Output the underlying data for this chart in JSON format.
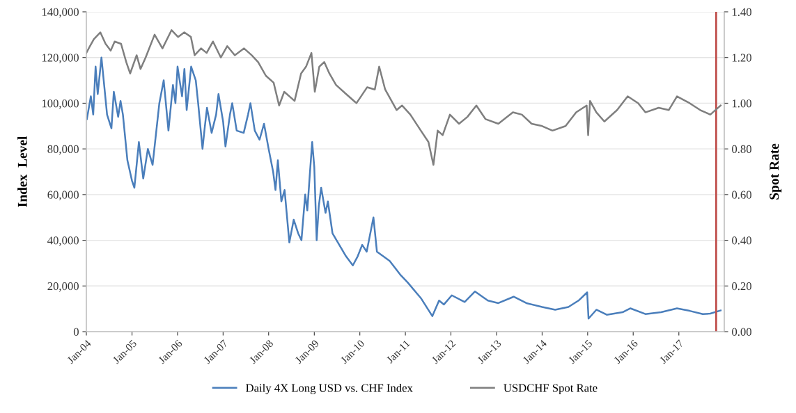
{
  "chart_data": {
    "type": "line",
    "ylabel": "Index  Level",
    "y2label": "Spot Rate",
    "xlim": [
      "2004-01-01",
      "2017-12-31"
    ],
    "xticks": [
      {
        "value": "2004-01-01",
        "label": "Jan-04"
      },
      {
        "value": "2005-01-01",
        "label": "Jan-05"
      },
      {
        "value": "2006-01-01",
        "label": "Jan-06"
      },
      {
        "value": "2007-01-01",
        "label": "Jan-07"
      },
      {
        "value": "2008-01-01",
        "label": "Jan-08"
      },
      {
        "value": "2009-01-01",
        "label": "Jan-09"
      },
      {
        "value": "2010-01-01",
        "label": "Jan-10"
      },
      {
        "value": "2011-01-01",
        "label": "Jan-11"
      },
      {
        "value": "2012-01-01",
        "label": "Jan-12"
      },
      {
        "value": "2013-01-01",
        "label": "Jan-13"
      },
      {
        "value": "2014-01-01",
        "label": "Jan-14"
      },
      {
        "value": "2015-01-01",
        "label": "Jan-15"
      },
      {
        "value": "2016-01-01",
        "label": "Jan-16"
      },
      {
        "value": "2017-01-01",
        "label": "Jan-17"
      }
    ],
    "ylim": [
      0,
      140000
    ],
    "yticks": [
      0,
      {
        "value": 20000,
        "label": "20,000"
      },
      {
        "value": 40000,
        "label": "40,000"
      },
      {
        "value": 60000,
        "label": "60,000"
      },
      {
        "value": 80000,
        "label": "80,000"
      },
      {
        "value": 100000,
        "label": "100,000"
      },
      {
        "value": 120000,
        "label": "120,000"
      },
      {
        "value": 140000,
        "label": "140,000"
      }
    ],
    "y2lim": [
      0,
      1.4
    ],
    "y2ticks": [
      {
        "value": 0,
        "label": "0.00"
      },
      {
        "value": 0.2,
        "label": "0.20"
      },
      {
        "value": 0.4,
        "label": "0.40"
      },
      {
        "value": 0.6,
        "label": "0.60"
      },
      {
        "value": 0.8,
        "label": "0.80"
      },
      {
        "value": 1.0,
        "label": "1.00"
      },
      {
        "value": 1.2,
        "label": "1.20"
      },
      {
        "value": 1.4,
        "label": "1.40"
      }
    ],
    "grid": "y",
    "legend": "bottom",
    "marker": "none",
    "line_style": "solid",
    "ref_lines": [
      {
        "axis": "x",
        "value": "2017-10-27",
        "label": null,
        "color": "#c0504d"
      }
    ],
    "series": [
      {
        "name": "Daily 4X Long USD vs. CHF Index",
        "color": "#4a7ebb",
        "x": [
          "2004-01-05",
          "2004-02-06",
          "2004-02-25",
          "2004-03-15",
          "2004-04-01",
          "2004-05-01",
          "2004-06-15",
          "2004-07-20",
          "2004-08-08",
          "2004-09-12",
          "2004-10-01",
          "2004-10-20",
          "2004-11-25",
          "2005-01-01",
          "2005-01-20",
          "2005-02-25",
          "2005-04-01",
          "2005-05-08",
          "2005-06-15",
          "2005-08-08",
          "2005-09-12",
          "2005-10-20",
          "2005-11-25",
          "2005-12-15",
          "2006-01-01",
          "2006-02-06",
          "2006-02-25",
          "2006-03-15",
          "2006-04-20",
          "2006-05-27",
          "2006-06-15",
          "2006-07-20",
          "2006-08-08",
          "2006-08-25",
          "2006-10-01",
          "2006-11-06",
          "2006-11-25",
          "2007-01-01",
          "2007-01-20",
          "2007-02-25",
          "2007-03-15",
          "2007-04-20",
          "2007-06-15",
          "2007-07-20",
          "2007-08-08",
          "2007-09-12",
          "2007-10-20",
          "2007-11-25",
          "2008-01-01",
          "2008-02-06",
          "2008-02-25",
          "2008-03-15",
          "2008-04-12",
          "2008-05-08",
          "2008-06-15",
          "2008-07-20",
          "2008-08-25",
          "2008-09-20",
          "2008-10-20",
          "2008-11-06",
          "2008-11-25",
          "2008-12-15",
          "2009-01-01",
          "2009-01-20",
          "2009-02-06",
          "2009-02-25",
          "2009-04-01",
          "2009-04-20",
          "2009-05-27",
          "2009-07-20",
          "2009-09-12",
          "2009-11-06",
          "2009-12-15",
          "2010-01-20",
          "2010-02-25",
          "2010-04-20",
          "2010-05-18",
          "2010-08-28",
          "2010-11-20",
          "2011-01-20",
          "2011-05-05",
          "2011-08-05",
          "2011-09-28",
          "2011-11-06",
          "2012-01-08",
          "2012-04-20",
          "2012-07-12",
          "2012-10-23",
          "2013-01-15",
          "2013-05-18",
          "2013-08-28",
          "2014-01-01",
          "2014-04-16",
          "2014-07-31",
          "2014-10-20",
          "2014-12-28",
          "2015-01-08",
          "2015-03-12",
          "2015-06-03",
          "2015-10-08",
          "2015-12-10",
          "2016-04-08",
          "2016-08-12",
          "2016-12-17",
          "2017-03-29",
          "2017-07-12",
          "2017-09-10",
          "2017-12-02"
        ],
        "values": [
          93000,
          103000,
          95000,
          116000,
          104000,
          120000,
          95000,
          89000,
          105000,
          94000,
          101000,
          95000,
          75000,
          66000,
          63000,
          83000,
          67000,
          80000,
          73000,
          100000,
          110000,
          88000,
          108000,
          100000,
          116000,
          103000,
          115000,
          97000,
          116000,
          110000,
          100000,
          80000,
          90000,
          98000,
          87000,
          95000,
          104000,
          92000,
          81000,
          95000,
          100000,
          88000,
          87000,
          95000,
          100000,
          88000,
          84000,
          91000,
          80000,
          70000,
          62000,
          75000,
          57000,
          62000,
          39000,
          49000,
          43000,
          40000,
          60000,
          53000,
          68000,
          83000,
          72000,
          40000,
          55000,
          63000,
          52000,
          57000,
          43000,
          38000,
          33000,
          29000,
          33000,
          38000,
          35000,
          50000,
          35000,
          31000,
          25000,
          21500,
          14700,
          6800,
          13600,
          11900,
          15900,
          13000,
          17600,
          13600,
          12500,
          15300,
          12500,
          10800,
          9600,
          10800,
          13600,
          17200,
          5700,
          9600,
          7400,
          8500,
          10200,
          7700,
          8500,
          10200,
          9100,
          7700,
          7900,
          9300
        ]
      },
      {
        "name": "USDCHF Spot Rate",
        "color": "#7f7f7f",
        "axis": "y2",
        "x": [
          "2004-01-01",
          "2004-01-30",
          "2004-03-01",
          "2004-04-22",
          "2004-06-03",
          "2004-07-14",
          "2004-08-15",
          "2004-10-05",
          "2004-11-16",
          "2004-12-17",
          "2005-02-07",
          "2005-03-10",
          "2005-04-20",
          "2005-07-01",
          "2005-09-02",
          "2005-11-14",
          "2006-01-05",
          "2006-02-24",
          "2006-04-18",
          "2006-05-18",
          "2006-07-08",
          "2006-08-22",
          "2006-10-12",
          "2006-12-14",
          "2007-02-03",
          "2007-04-05",
          "2007-06-18",
          "2007-08-18",
          "2007-10-09",
          "2007-12-10",
          "2008-02-10",
          "2008-03-25",
          "2008-05-05",
          "2008-07-27",
          "2008-09-17",
          "2008-10-27",
          "2008-12-09",
          "2009-01-05",
          "2009-02-10",
          "2009-03-22",
          "2009-05-02",
          "2009-06-24",
          "2009-09-13",
          "2009-12-05",
          "2010-03-01",
          "2010-05-01",
          "2010-06-05",
          "2010-07-23",
          "2010-10-23",
          "2010-12-05",
          "2011-02-10",
          "2011-05-05",
          "2011-07-05",
          "2011-08-14",
          "2011-09-17",
          "2011-10-27",
          "2011-12-24",
          "2012-03-06",
          "2012-05-12",
          "2012-07-23",
          "2012-10-05",
          "2013-01-15",
          "2013-05-12",
          "2013-07-23",
          "2013-10-09",
          "2014-01-01",
          "2014-03-25",
          "2014-07-08",
          "2014-10-01",
          "2014-12-24",
          "2015-01-05",
          "2015-01-20",
          "2015-03-12",
          "2015-05-15",
          "2015-08-25",
          "2015-11-18",
          "2016-02-10",
          "2016-04-08",
          "2016-07-23",
          "2016-10-12",
          "2016-12-17",
          "2017-03-29",
          "2017-06-21",
          "2017-09-10",
          "2017-12-02"
        ],
        "values": [
          1.22,
          1.25,
          1.28,
          1.31,
          1.26,
          1.23,
          1.27,
          1.26,
          1.18,
          1.13,
          1.21,
          1.15,
          1.2,
          1.3,
          1.24,
          1.32,
          1.29,
          1.31,
          1.29,
          1.21,
          1.24,
          1.22,
          1.27,
          1.2,
          1.25,
          1.21,
          1.24,
          1.21,
          1.18,
          1.12,
          1.09,
          0.99,
          1.05,
          1.01,
          1.13,
          1.16,
          1.22,
          1.05,
          1.16,
          1.18,
          1.13,
          1.08,
          1.04,
          1.0,
          1.07,
          1.06,
          1.16,
          1.06,
          0.97,
          0.99,
          0.95,
          0.88,
          0.83,
          0.73,
          0.88,
          0.86,
          0.95,
          0.91,
          0.94,
          0.99,
          0.93,
          0.91,
          0.96,
          0.95,
          0.91,
          0.9,
          0.88,
          0.9,
          0.96,
          0.99,
          0.86,
          1.01,
          0.96,
          0.92,
          0.97,
          1.03,
          1.0,
          0.96,
          0.98,
          0.97,
          1.03,
          1.0,
          0.97,
          0.95,
          0.99
        ]
      }
    ]
  }
}
